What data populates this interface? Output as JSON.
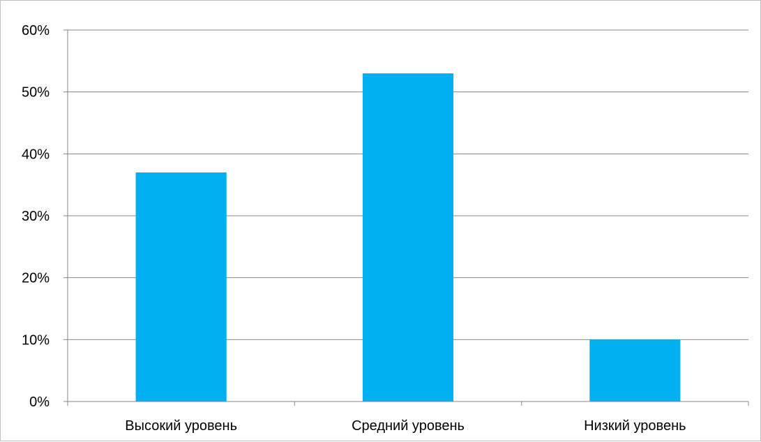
{
  "chart_data": {
    "type": "bar",
    "title": "",
    "xlabel": "",
    "ylabel": "",
    "categories": [
      "Высокий уровень",
      "Средний уровень",
      "Низкий уровень"
    ],
    "values": [
      37,
      53,
      10
    ],
    "unit": "%",
    "ylim": [
      0,
      60
    ],
    "yticks": [
      "0%",
      "10%",
      "20%",
      "30%",
      "40%",
      "50%",
      "60%"
    ],
    "grid": true,
    "legend": "none",
    "bar_color": "#00B0F0",
    "grid_color": "#868686"
  }
}
